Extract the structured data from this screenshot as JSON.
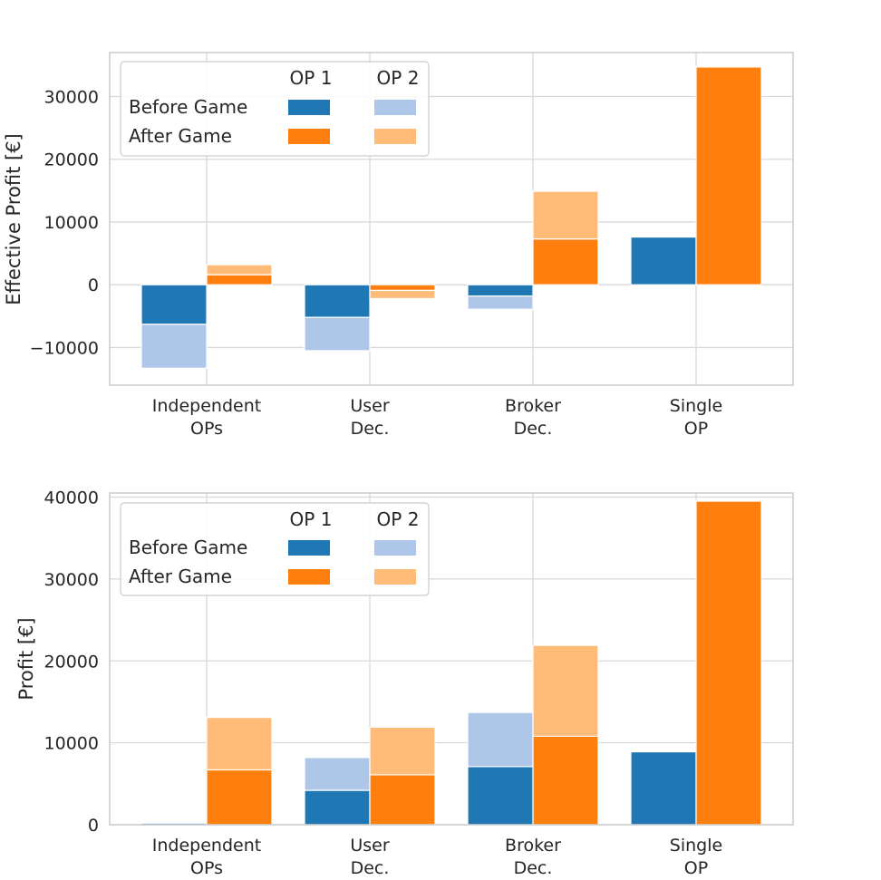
{
  "colors": {
    "op1_before": "#1f77b4",
    "op2_before": "#aec7e8",
    "op1_after": "#ff7f0e",
    "op2_after": "#ffbb78",
    "grid": "#d9d9d9",
    "frame": "#cccccc"
  },
  "legend": {
    "col1": "OP 1",
    "col2": "OP 2",
    "row1": "Before Game",
    "row2": "After Game"
  },
  "chart_data": [
    {
      "type": "bar",
      "stacked": true,
      "title": "",
      "xlabel": "",
      "ylabel": "Effective Profit [€]",
      "ylim": [
        -16000,
        37000
      ],
      "yticks": [
        -10000,
        0,
        10000,
        20000,
        30000
      ],
      "ytick_labels": [
        "−10000",
        "0",
        "10000",
        "20000",
        "30000"
      ],
      "categories": [
        [
          "Independent",
          "OPs"
        ],
        [
          "User",
          "Dec."
        ],
        [
          "Broker",
          "Dec."
        ],
        [
          "Single",
          "OP"
        ]
      ],
      "legend_position": "upper-left",
      "grid": true,
      "series": [
        {
          "name": "Before Game OP 1",
          "group": "before",
          "values": [
            -6300,
            -5200,
            -1800,
            7600
          ]
        },
        {
          "name": "Before Game OP 2",
          "group": "before",
          "values": [
            -7000,
            -5300,
            -2100,
            0
          ]
        },
        {
          "name": "After Game OP 1",
          "group": "after",
          "values": [
            1600,
            -900,
            7300,
            34700
          ]
        },
        {
          "name": "After Game OP 2",
          "group": "after",
          "values": [
            1600,
            -1300,
            7600,
            0
          ]
        }
      ]
    },
    {
      "type": "bar",
      "stacked": true,
      "title": "",
      "xlabel": "",
      "ylabel": "Profit [€]",
      "ylim": [
        0,
        40500
      ],
      "yticks": [
        0,
        10000,
        20000,
        30000,
        40000
      ],
      "ytick_labels": [
        "0",
        "10000",
        "20000",
        "30000",
        "40000"
      ],
      "categories": [
        [
          "Independent",
          "OPs"
        ],
        [
          "User",
          "Dec."
        ],
        [
          "Broker",
          "Dec."
        ],
        [
          "Single",
          "OP"
        ]
      ],
      "legend_position": "upper-left",
      "grid": true,
      "series": [
        {
          "name": "Before Game OP 1",
          "group": "before",
          "values": [
            200,
            4200,
            7100,
            8900
          ]
        },
        {
          "name": "Before Game OP 2",
          "group": "before",
          "values": [
            100,
            4000,
            6600,
            0
          ]
        },
        {
          "name": "After Game OP 1",
          "group": "after",
          "values": [
            6700,
            6100,
            10800,
            39500
          ]
        },
        {
          "name": "After Game OP 2",
          "group": "after",
          "values": [
            6400,
            5800,
            11100,
            0
          ]
        }
      ]
    }
  ]
}
